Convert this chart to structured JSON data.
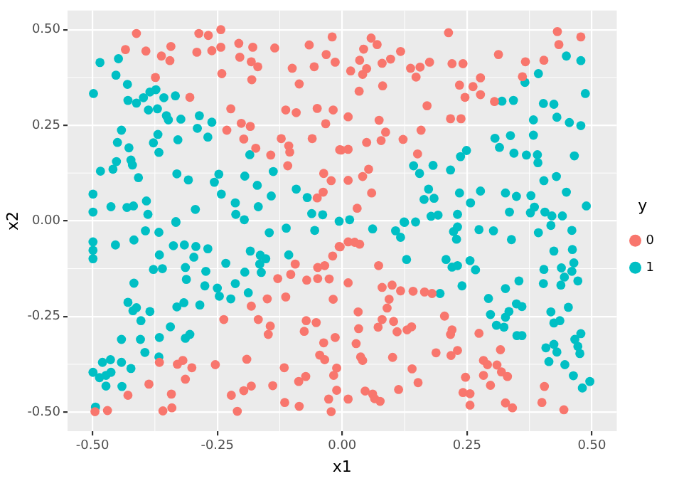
{
  "chart_data": {
    "type": "scatter",
    "xlabel": "x1",
    "ylabel": "x2",
    "legend_title": "y",
    "legend": "right",
    "grid": true,
    "marker": "circle",
    "xlim": [
      -0.55,
      0.55
    ],
    "ylim": [
      -0.55,
      0.55
    ],
    "xticks": [
      {
        "value": -0.5,
        "label": "-0.50"
      },
      {
        "value": -0.25,
        "label": "-0.25"
      },
      {
        "value": 0,
        "label": "0.00"
      },
      {
        "value": 0.25,
        "label": "0.25"
      },
      {
        "value": 0.5,
        "label": "0.50"
      }
    ],
    "yticks": [
      {
        "value": -0.5,
        "label": "-0.50"
      },
      {
        "value": -0.25,
        "label": "-0.25"
      },
      {
        "value": 0,
        "label": "0.00"
      },
      {
        "value": 0.25,
        "label": "0.25"
      },
      {
        "value": 0.5,
        "label": "0.50"
      }
    ],
    "series": [
      {
        "name": "0",
        "color": "#f8766d",
        "x": [
          -0.412,
          -0.287,
          -0.268,
          -0.243,
          -0.434,
          -0.393,
          -0.343,
          -0.362,
          -0.345,
          -0.291,
          -0.261,
          -0.243,
          -0.207,
          -0.179,
          -0.205,
          -0.182,
          -0.169,
          -0.135,
          -0.241,
          -0.181,
          -0.374,
          -0.305,
          -0.223,
          -0.231,
          -0.202,
          -0.184,
          -0.197,
          -0.173,
          -0.143,
          -0.122,
          -0.107,
          -0.105,
          -0.109,
          -0.06,
          -0.037,
          -0.022,
          -0.038,
          -0.05,
          -0.113,
          -0.092,
          -0.05,
          -0.018,
          -0.033,
          -0.086,
          -0.1,
          -0.066,
          -0.056,
          -0.032,
          -0.02,
          -0.014,
          -0.005,
          0.058,
          0.043,
          0.07,
          0.035,
          0.017,
          0.041,
          0.049,
          0.08,
          0.097,
          0.117,
          0.081,
          0.034,
          0.137,
          0.148,
          0.156,
          0.175,
          0.213,
          0.22,
          0.242,
          0.235,
          0.262,
          0.246,
          0.277,
          0.277,
          0.305,
          0.313,
          0.367,
          0.361,
          0.404,
          0.431,
          0.434,
          0.478,
          0.17,
          0.217,
          0.238,
          0.012,
          0.074,
          0.158,
          0.087,
          0.078,
          0.049,
          0.122,
          -0.002,
          0.012,
          0.151,
          0.053,
          0.041,
          0.012,
          0.059,
          0.03,
          -0.006,
          -0.019,
          -0.035,
          -0.049,
          -0.094,
          -0.103,
          -0.129,
          -0.071,
          -0.049,
          -0.026,
          -0.113,
          -0.15,
          -0.182,
          -0.018,
          -0.237,
          -0.168,
          -0.144,
          -0.148,
          -0.072,
          -0.052,
          -0.076,
          -0.014,
          -0.037,
          -0.045,
          -0.035,
          -0.011,
          -0.017,
          -0.073,
          -0.087,
          -0.116,
          -0.139,
          -0.011,
          -0.027,
          -0.022,
          -0.086,
          -0.115,
          -0.182,
          -0.197,
          -0.222,
          -0.21,
          -0.191,
          -0.254,
          -0.301,
          -0.319,
          -0.33,
          -0.314,
          -0.366,
          -0.387,
          -0.429,
          -0.342,
          -0.341,
          -0.359,
          -0.47,
          -0.495,
          0.012,
          0.025,
          0.035,
          -0.004,
          0.073,
          0.012,
          0.08,
          0.1,
          0.117,
          0.142,
          0.165,
          0.18,
          0.094,
          0.09,
          0.032,
          0.08,
          0.103,
          0.072,
          0.11,
          0.13,
          0.139,
          0.033,
          0.205,
          0.22,
          0.217,
          0.274,
          0.028,
          0.037,
          0.041,
          0.101,
          0.188,
          0.218,
          0.231,
          0.317,
          0.283,
          0.291,
          0.31,
          0.319,
          0.331,
          0.283,
          0.247,
          0.14,
          0.152,
          0.113,
          0.046,
          0.061,
          0.065,
          0.076,
          0.012,
          0.297,
          0.242,
          0.256,
          0.256,
          0.327,
          0.341,
          0.405,
          0.4,
          0.444
        ],
        "values": [
          0.49,
          0.49,
          0.485,
          0.5,
          0.448,
          0.444,
          0.456,
          0.431,
          0.419,
          0.441,
          0.445,
          0.454,
          0.464,
          0.454,
          0.428,
          0.416,
          0.403,
          0.452,
          0.385,
          0.369,
          0.375,
          0.323,
          0.293,
          0.237,
          0.255,
          0.247,
          0.214,
          0.19,
          0.172,
          0.215,
          0.196,
          0.18,
          0.144,
          0.215,
          0.124,
          0.105,
          0.075,
          0.06,
          0.29,
          0.283,
          0.294,
          0.29,
          0.254,
          0.358,
          0.399,
          0.46,
          0.403,
          0.435,
          0.481,
          0.415,
          0.186,
          0.478,
          0.449,
          0.461,
          0.42,
          0.392,
          0.383,
          0.398,
          0.412,
          0.423,
          0.443,
          0.353,
          0.339,
          0.399,
          0.376,
          0.402,
          0.415,
          0.492,
          0.411,
          0.411,
          0.355,
          0.351,
          0.323,
          0.374,
          0.33,
          0.312,
          0.435,
          0.416,
          0.377,
          0.42,
          0.495,
          0.461,
          0.481,
          0.301,
          0.267,
          0.267,
          0.272,
          0.263,
          0.237,
          0.232,
          0.21,
          0.205,
          0.213,
          0.185,
          0.187,
          0.175,
          0.135,
          0.116,
          0.106,
          0.073,
          0.033,
          -0.067,
          -0.092,
          -0.117,
          -0.122,
          -0.113,
          -0.14,
          -0.151,
          -0.155,
          -0.151,
          -0.152,
          -0.199,
          -0.204,
          -0.223,
          -0.205,
          -0.258,
          -0.258,
          -0.275,
          -0.297,
          -0.261,
          -0.266,
          -0.289,
          -0.305,
          -0.319,
          -0.351,
          -0.363,
          -0.385,
          -0.404,
          -0.407,
          -0.42,
          -0.384,
          -0.431,
          -0.443,
          -0.466,
          -0.499,
          -0.485,
          -0.475,
          -0.432,
          -0.444,
          -0.456,
          -0.498,
          -0.362,
          -0.376,
          -0.384,
          -0.365,
          -0.375,
          -0.414,
          -0.37,
          -0.427,
          -0.456,
          -0.453,
          -0.489,
          -0.497,
          -0.496,
          -0.499,
          -0.055,
          -0.056,
          -0.061,
          -0.068,
          -0.117,
          -0.162,
          -0.174,
          -0.168,
          -0.183,
          -0.184,
          -0.186,
          -0.19,
          -0.205,
          -0.228,
          -0.238,
          -0.258,
          -0.263,
          -0.278,
          -0.29,
          -0.285,
          -0.277,
          -0.282,
          -0.249,
          -0.285,
          -0.297,
          -0.294,
          -0.321,
          -0.356,
          -0.365,
          -0.357,
          -0.345,
          -0.352,
          -0.339,
          -0.337,
          -0.365,
          -0.376,
          -0.377,
          -0.395,
          -0.407,
          -0.404,
          -0.409,
          -0.387,
          -0.423,
          -0.441,
          -0.445,
          -0.453,
          -0.465,
          -0.472,
          -0.466,
          -0.43,
          -0.449,
          -0.452,
          -0.482,
          -0.476,
          -0.489,
          -0.433,
          -0.475,
          -0.494
        ]
      },
      {
        "name": "1",
        "color": "#00bfc4",
        "x": [
          -0.485,
          -0.448,
          -0.453,
          -0.498,
          -0.43,
          -0.429,
          -0.412,
          -0.398,
          -0.385,
          -0.373,
          -0.357,
          -0.334,
          -0.388,
          -0.37,
          -0.352,
          -0.348,
          -0.323,
          -0.286,
          -0.261,
          -0.29,
          -0.442,
          -0.369,
          -0.378,
          -0.45,
          -0.427,
          -0.367,
          -0.329,
          -0.269,
          -0.423,
          -0.42,
          -0.452,
          -0.484,
          -0.459,
          -0.408,
          -0.331,
          -0.308,
          -0.256,
          -0.247,
          -0.195,
          -0.185,
          -0.17,
          -0.138,
          -0.092,
          -0.499,
          -0.242,
          -0.142,
          -0.07,
          -0.499,
          -0.463,
          -0.431,
          -0.418,
          -0.392,
          -0.389,
          -0.294,
          -0.214,
          -0.168,
          -0.213,
          -0.196,
          -0.333,
          -0.061,
          -0.039,
          -0.006,
          0.449,
          0.478,
          0.393,
          0.366,
          0.32,
          0.343,
          0.403,
          0.424,
          0.487,
          0.43,
          0.383,
          0.455,
          0.478,
          0.306,
          0.337,
          0.383,
          0.315,
          0.344,
          0.369,
          0.391,
          0.392,
          0.465,
          0.249,
          0.237,
          0.143,
          0.155,
          0.182,
          0.217,
          0.173,
          0.164,
          0.184,
          0.235,
          0.277,
          0.257,
          0.327,
          0.349,
          0.378,
          0.404,
          0.429,
          0.449,
          0.489,
          0.335,
          0.377,
          0.385,
          0.406,
          0.42,
          0.441,
          0.178,
          0.192,
          0.231,
          0.124,
          0.147,
          0.015,
          -0.499,
          -0.499,
          -0.499,
          -0.454,
          -0.417,
          -0.394,
          -0.367,
          -0.333,
          -0.338,
          -0.316,
          -0.293,
          -0.269,
          -0.366,
          -0.297,
          -0.378,
          -0.36,
          -0.314,
          -0.273,
          -0.233,
          -0.195,
          -0.165,
          -0.153,
          -0.162,
          -0.184,
          -0.146,
          -0.112,
          -0.107,
          -0.055,
          -0.312,
          -0.214,
          -0.275,
          -0.25,
          -0.246,
          -0.223,
          -0.188,
          -0.417,
          -0.429,
          -0.412,
          -0.419,
          -0.385,
          -0.317,
          -0.331,
          -0.285,
          -0.403,
          -0.344,
          -0.442,
          -0.404,
          -0.366,
          -0.314,
          -0.305,
          -0.395,
          -0.367,
          -0.423,
          -0.48,
          -0.464,
          -0.442,
          -0.499,
          -0.486,
          -0.473,
          -0.463,
          -0.473,
          -0.441,
          -0.494,
          -0.164,
          0.061,
          0.107,
          0.117,
          0.125,
          0.223,
          0.231,
          0.229,
          0.274,
          0.303,
          0.339,
          0.393,
          0.418,
          0.46,
          0.461,
          0.424,
          0.129,
          0.208,
          0.22,
          0.231,
          0.256,
          0.267,
          0.24,
          0.196,
          0.327,
          0.354,
          0.293,
          0.349,
          0.36,
          0.334,
          0.297,
          0.327,
          0.309,
          0.324,
          0.35,
          0.36,
          0.403,
          0.404,
          0.439,
          0.445,
          0.438,
          0.46,
          0.464,
          0.472,
          0.418,
          0.453,
          0.424,
          0.436,
          0.478,
          0.466,
          0.472,
          0.476,
          0.424,
          0.43,
          0.408,
          0.414,
          0.446,
          0.463,
          0.496,
          0.481
        ],
        "values": [
          0.414,
          0.424,
          0.381,
          0.333,
          0.357,
          0.315,
          0.308,
          0.322,
          0.337,
          0.343,
          0.322,
          0.327,
          0.29,
          0.293,
          0.275,
          0.264,
          0.266,
          0.275,
          0.258,
          0.242,
          0.237,
          0.226,
          0.204,
          0.205,
          0.191,
          0.179,
          0.212,
          0.219,
          0.159,
          0.146,
          0.155,
          0.13,
          0.135,
          0.113,
          0.123,
          0.107,
          0.101,
          0.122,
          0.117,
          0.173,
          0.093,
          0.129,
          0.083,
          0.07,
          0.07,
          0.065,
          0.061,
          0.023,
          0.037,
          0.035,
          0.039,
          0.052,
          0.017,
          0.03,
          0.047,
          0.037,
          0.017,
          0.003,
          -0.002,
          0.019,
          0.016,
          -0.001,
          0.431,
          0.419,
          0.385,
          0.362,
          0.313,
          0.315,
          0.307,
          0.305,
          0.333,
          0.271,
          0.264,
          0.257,
          0.249,
          0.216,
          0.223,
          0.224,
          0.192,
          0.177,
          0.172,
          0.173,
          0.152,
          0.17,
          0.184,
          0.168,
          0.144,
          0.124,
          0.145,
          0.133,
          0.083,
          0.056,
          0.059,
          0.073,
          0.078,
          0.047,
          0.073,
          0.064,
          0.066,
          0.105,
          0.116,
          0.075,
          0.039,
          0.023,
          0.021,
          0.036,
          0.023,
          0.013,
          0.013,
          0.012,
          0.015,
          0.017,
          -0.003,
          -0.003,
          0.003,
          -0.055,
          -0.077,
          -0.099,
          -0.063,
          -0.05,
          -0.026,
          -0.03,
          -0.004,
          -0.065,
          -0.063,
          -0.067,
          -0.073,
          -0.089,
          -0.095,
          -0.127,
          -0.125,
          -0.122,
          -0.132,
          -0.111,
          -0.134,
          -0.113,
          -0.099,
          -0.135,
          -0.079,
          -0.031,
          -0.019,
          -0.089,
          -0.025,
          -0.153,
          -0.164,
          -0.17,
          -0.176,
          -0.197,
          -0.204,
          -0.188,
          -0.163,
          -0.213,
          -0.227,
          -0.235,
          -0.237,
          -0.214,
          -0.225,
          -0.22,
          -0.261,
          -0.277,
          -0.31,
          -0.31,
          -0.305,
          -0.307,
          -0.297,
          -0.344,
          -0.356,
          -0.386,
          -0.37,
          -0.363,
          -0.37,
          -0.396,
          -0.41,
          -0.404,
          -0.396,
          -0.432,
          -0.433,
          -0.487,
          -0.09,
          -0.021,
          -0.026,
          -0.043,
          -0.004,
          -0.028,
          -0.016,
          -0.048,
          -0.023,
          -0.026,
          -0.049,
          -0.031,
          -0.012,
          -0.025,
          -0.075,
          -0.079,
          -0.101,
          -0.101,
          -0.121,
          -0.117,
          -0.104,
          -0.128,
          -0.17,
          -0.19,
          -0.177,
          -0.157,
          -0.203,
          -0.217,
          -0.224,
          -0.237,
          -0.245,
          -0.252,
          -0.273,
          -0.278,
          -0.3,
          -0.3,
          -0.164,
          -0.127,
          -0.123,
          -0.147,
          -0.168,
          -0.132,
          -0.11,
          -0.157,
          -0.238,
          -0.226,
          -0.267,
          -0.261,
          -0.295,
          -0.31,
          -0.328,
          -0.347,
          -0.323,
          -0.343,
          -0.332,
          -0.368,
          -0.376,
          -0.405,
          -0.42,
          -0.437
        ]
      }
    ]
  }
}
